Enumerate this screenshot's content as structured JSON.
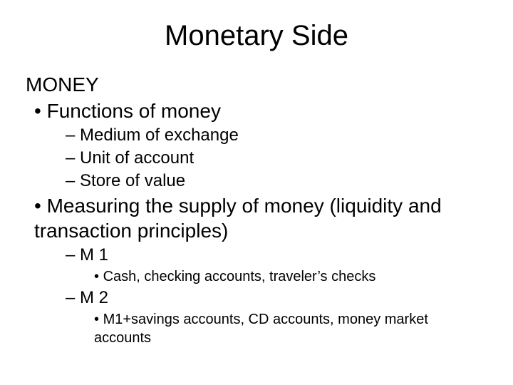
{
  "title": "Monetary Side",
  "heading": "MONEY",
  "level1": {
    "functions": "Functions of money",
    "measuring": "Measuring the supply of money (liquidity and transaction principles)"
  },
  "functions_items": {
    "a": "Medium of exchange",
    "b": "Unit of account",
    "c": "Store of value"
  },
  "measuring_items": {
    "m1": "M 1",
    "m1_detail": "Cash, checking accounts, traveler’s checks",
    "m2": "M 2",
    "m2_detail": "M1+savings accounts, CD accounts, money market accounts"
  },
  "colors": {
    "background": "#ffffff",
    "text": "#000000"
  },
  "typography": {
    "title_fontsize": 40,
    "body_fontsize": 28,
    "sub_fontsize": 24,
    "subsub_fontsize": 20,
    "font_family": "Arial"
  }
}
